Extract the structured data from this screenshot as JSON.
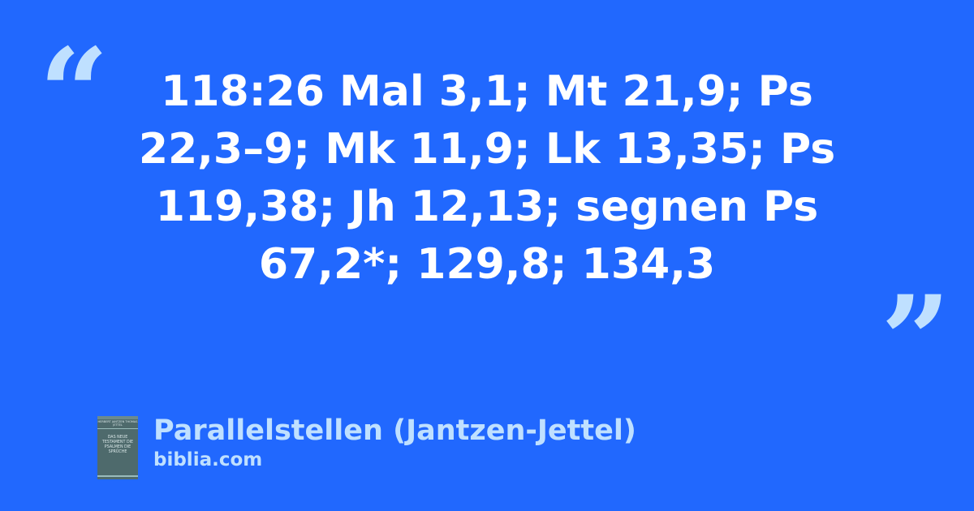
{
  "quote": {
    "open_mark": "“",
    "close_mark": "”",
    "text": "118:26 Mal 3,1; Mt 21,9; Ps 22,3–9; Mk 11,9; Lk 13,35; Ps 119,38; Jh 12,13; segnen Ps 67,2*; 129,8; 134,3"
  },
  "source": {
    "title": "Parallelstellen (Jantzen-Jettel)",
    "site": "biblia.com",
    "cover_authors": "HERBERT JANTZEN THOMAS JETTEL",
    "cover_title": "DAS NEUE TESTAMENT DIE PSALMEN DIE SPRÜCHE"
  },
  "colors": {
    "background": "#2168fe",
    "accent": "#bfe0ff",
    "text": "#ffffff"
  }
}
